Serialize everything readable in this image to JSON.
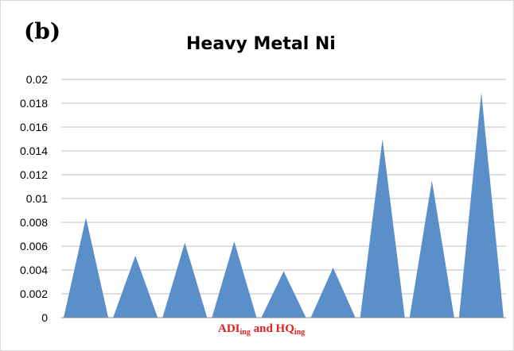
{
  "panel_label": "(b)",
  "chart_data": {
    "type": "area",
    "title": "Heavy Metal Ni",
    "xlabel_parts": [
      "ADI",
      "ing",
      " and HQ",
      "ing"
    ],
    "ylabel": "",
    "ylim": [
      0,
      0.02
    ],
    "yticks": [
      "0",
      "0.002",
      "0.004",
      "0.006",
      "0.008",
      "0.01",
      "0.012",
      "0.014",
      "0.016",
      "0.018",
      "0.02"
    ],
    "grid": true,
    "legend": "none",
    "colors": {
      "series": "#5b8fc9",
      "grid": "#bfbfbf",
      "axis": "#8c8c8c",
      "xlabel": "#e02020"
    },
    "peaks": [
      0.0084,
      0.0052,
      0.0063,
      0.0064,
      0.0039,
      0.0042,
      0.015,
      0.0115,
      0.0189
    ]
  }
}
